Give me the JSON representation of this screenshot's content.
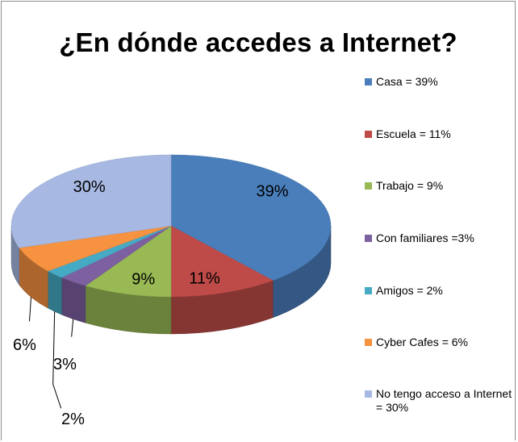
{
  "chart_data": {
    "type": "pie",
    "title": "¿En dónde accedes a Internet?",
    "slices": [
      {
        "label": "Casa = 39%",
        "value": 39,
        "data_label": "39%",
        "color": "#4a7ebb"
      },
      {
        "label": "Escuela = 11%",
        "value": 11,
        "data_label": "11%",
        "color": "#be4b48"
      },
      {
        "label": "Trabajo = 9%",
        "value": 9,
        "data_label": "9%",
        "color": "#98b954"
      },
      {
        "label": "Con familiares =3%",
        "value": 3,
        "data_label": "3%",
        "color": "#7d60a0"
      },
      {
        "label": "Amigos = 2%",
        "value": 2,
        "data_label": "2%",
        "color": "#46aac5"
      },
      {
        "label": "Cyber Cafes = 6%",
        "value": 6,
        "data_label": "6%",
        "color": "#f69240"
      },
      {
        "label": "No tengo acceso a Internet = 30%",
        "value": 30,
        "data_label": "30%",
        "color": "#a7b9e3"
      }
    ],
    "legend_position": "right"
  }
}
